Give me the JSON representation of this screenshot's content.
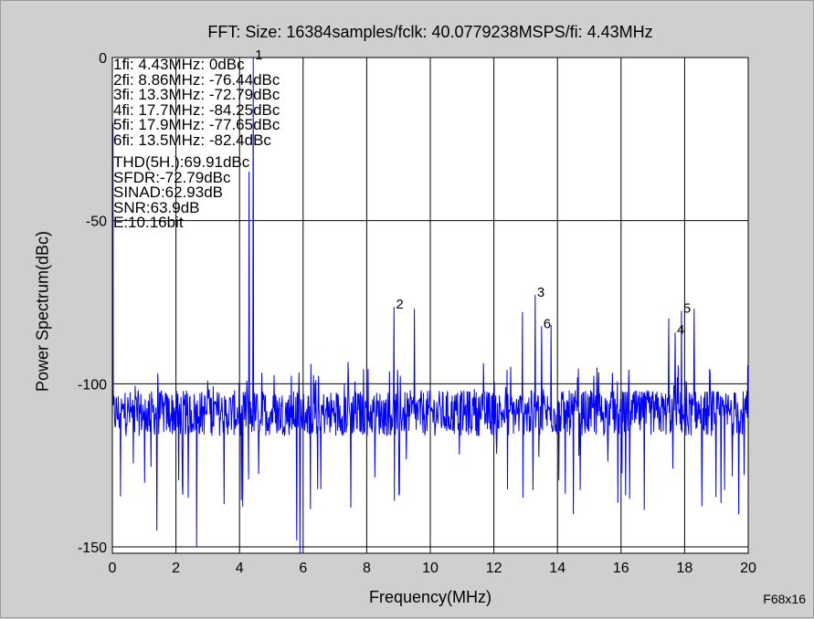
{
  "chart_data": {
    "type": "line",
    "title": "FFT: Size: 16384samples/fclk: 40.0779238MSPS/fi: 4.43MHz",
    "xlabel": "Frequency(MHz)",
    "ylabel": "Power Spectrum(dBc)",
    "xlim": [
      0,
      20
    ],
    "ylim": [
      -152,
      0
    ],
    "x_ticks": [
      0,
      2,
      4,
      6,
      8,
      10,
      12,
      14,
      16,
      18,
      20
    ],
    "y_ticks": [
      0,
      -50,
      -100,
      -150
    ],
    "grid": true,
    "series": [
      {
        "color": "#0000ff",
        "noise_floor_dbc": -109,
        "harmonics": [
          {
            "label": "1",
            "x": 4.43,
            "y": 0
          },
          {
            "label": "2",
            "x": 8.86,
            "y": -76.44
          },
          {
            "label": "3",
            "x": 13.3,
            "y": -72.79
          },
          {
            "label": "4",
            "x": 17.7,
            "y": -84.25
          },
          {
            "label": "5",
            "x": 17.9,
            "y": -77.65
          },
          {
            "label": "6",
            "x": 13.5,
            "y": -82.4
          }
        ],
        "spurs": [
          {
            "x": 0.02,
            "y": -20
          },
          {
            "x": 4.3,
            "y": -35
          },
          {
            "x": 9.5,
            "y": -77
          },
          {
            "x": 12.9,
            "y": -78
          },
          {
            "x": 13.8,
            "y": -82
          },
          {
            "x": 18.3,
            "y": -77
          },
          {
            "x": 17.5,
            "y": -80
          }
        ],
        "dips": [
          {
            "x": 1.4,
            "y": -145
          },
          {
            "x": 2.65,
            "y": -150
          },
          {
            "x": 5.8,
            "y": -148
          },
          {
            "x": 5.9,
            "y": -152
          },
          {
            "x": 14.5,
            "y": -140
          },
          {
            "x": 7.5,
            "y": -138
          },
          {
            "x": 19.7,
            "y": -140
          }
        ]
      }
    ],
    "annotations": [
      "1fi: 4.43MHz: 0dBc",
      "2fi: 8.86MHz: -76.44dBc",
      "3fi: 13.3MHz: -72.79dBc",
      "4fi: 17.7MHz: -84.25dBc",
      "5fi: 17.9MHz: -77.65dBc",
      "6fi: 13.5MHz: -82.4dBc"
    ],
    "metrics": [
      "THD(5H.):69.91dBc",
      "SFDR:-72.79dBc",
      "SINAD:62.93dB",
      "SNR:63.9dB",
      "E:10.16bit"
    ]
  },
  "figure_id": "F68x16"
}
